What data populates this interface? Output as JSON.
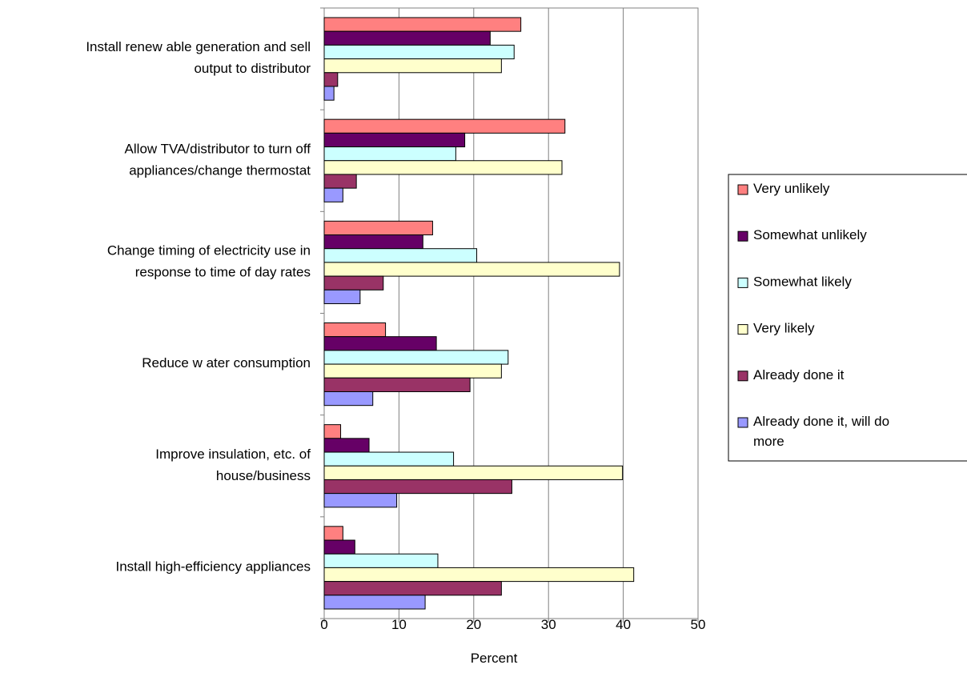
{
  "chart_data": {
    "type": "bar",
    "orientation": "horizontal",
    "x_label": "Percent",
    "categories": [
      "Install renew able generation and sell\noutput to distributor",
      "Allow  TVA/distributor to turn off\nappliances/change thermostat",
      "Change timing of electricity use in\nresponse to time of day rates",
      "Reduce w ater consumption",
      "Improve insulation, etc. of\nhouse/business",
      "Install high-efficiency appliances"
    ],
    "series": [
      {
        "name": "Very unlikely",
        "color": "#ff8080",
        "values": [
          26.3,
          32.2,
          14.5,
          8.2,
          2.2,
          2.5
        ]
      },
      {
        "name": "Somewhat unlikely",
        "color": "#660066",
        "values": [
          22.2,
          18.8,
          13.2,
          15.0,
          6.0,
          4.1
        ]
      },
      {
        "name": "Somewhat likely",
        "color": "#ccffff",
        "values": [
          25.4,
          17.6,
          20.4,
          24.6,
          17.3,
          15.2
        ]
      },
      {
        "name": "Very likely",
        "color": "#ffffcc",
        "values": [
          23.7,
          31.8,
          39.5,
          23.7,
          39.9,
          41.4
        ]
      },
      {
        "name": "Already done it",
        "color": "#993366",
        "values": [
          1.8,
          4.3,
          7.9,
          19.5,
          25.1,
          23.7
        ]
      },
      {
        "name": "Already done it, will do\nmore",
        "color": "#9999ff",
        "values": [
          1.3,
          2.5,
          4.8,
          6.5,
          9.7,
          13.5
        ]
      }
    ],
    "xlim": [
      0,
      50
    ],
    "xticks": [
      0,
      10,
      20,
      30,
      40,
      50
    ],
    "grid": true,
    "legend": "right"
  }
}
